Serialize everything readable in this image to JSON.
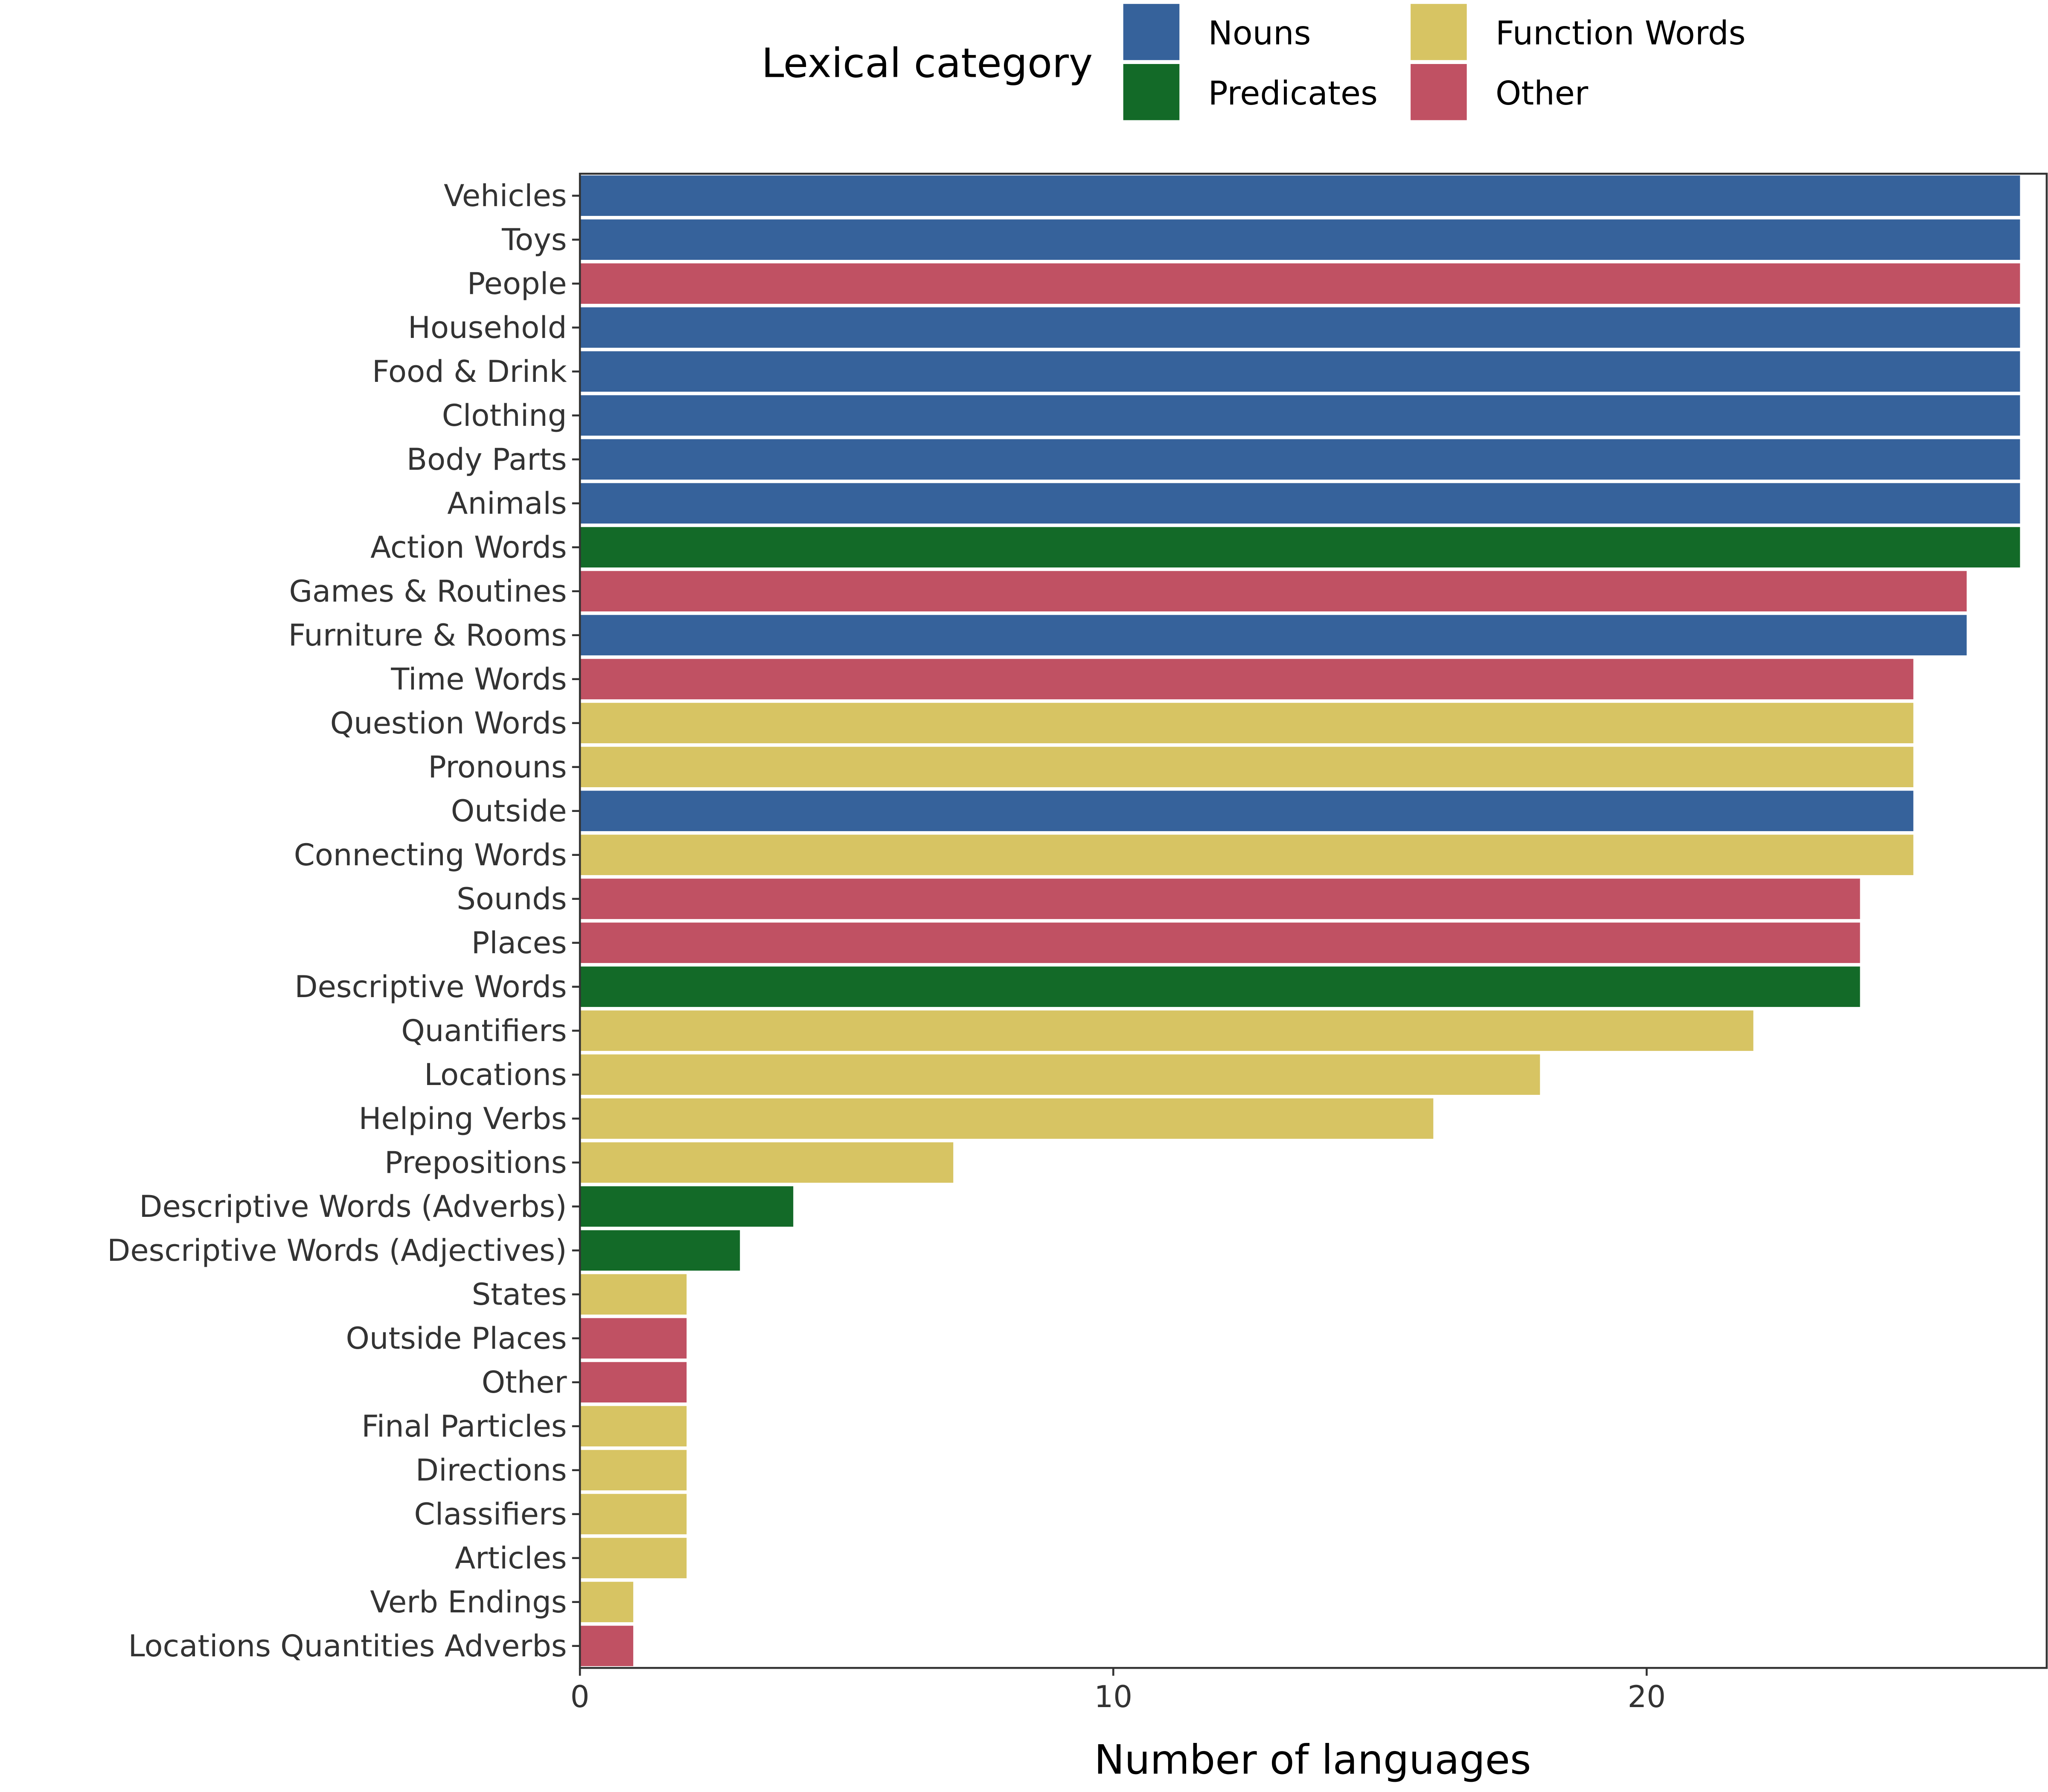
{
  "chart_data": {
    "type": "bar",
    "orientation": "horizontal",
    "title": "",
    "xlabel": "Number of languages",
    "ylabel": "",
    "xlim": [
      0,
      27.5
    ],
    "xticks": [
      0,
      10,
      20
    ],
    "grid": false,
    "legend": {
      "title": "Lexical category",
      "placement": "top",
      "entries": [
        {
          "name": "Nouns",
          "color": "#36629B"
        },
        {
          "name": "Predicates",
          "color": "#136A28"
        },
        {
          "name": "Function Words",
          "color": "#D7C463"
        },
        {
          "name": "Other",
          "color": "#C05163"
        }
      ]
    },
    "bars": [
      {
        "category": "Vehicles",
        "value": 27,
        "group": "Nouns"
      },
      {
        "category": "Toys",
        "value": 27,
        "group": "Nouns"
      },
      {
        "category": "People",
        "value": 27,
        "group": "Other"
      },
      {
        "category": "Household",
        "value": 27,
        "group": "Nouns"
      },
      {
        "category": "Food & Drink",
        "value": 27,
        "group": "Nouns"
      },
      {
        "category": "Clothing",
        "value": 27,
        "group": "Nouns"
      },
      {
        "category": "Body Parts",
        "value": 27,
        "group": "Nouns"
      },
      {
        "category": "Animals",
        "value": 27,
        "group": "Nouns"
      },
      {
        "category": "Action Words",
        "value": 27,
        "group": "Predicates"
      },
      {
        "category": "Games & Routines",
        "value": 26,
        "group": "Other"
      },
      {
        "category": "Furniture & Rooms",
        "value": 26,
        "group": "Nouns"
      },
      {
        "category": "Time Words",
        "value": 25,
        "group": "Other"
      },
      {
        "category": "Question Words",
        "value": 25,
        "group": "Function Words"
      },
      {
        "category": "Pronouns",
        "value": 25,
        "group": "Function Words"
      },
      {
        "category": "Outside",
        "value": 25,
        "group": "Nouns"
      },
      {
        "category": "Connecting Words",
        "value": 25,
        "group": "Function Words"
      },
      {
        "category": "Sounds",
        "value": 24,
        "group": "Other"
      },
      {
        "category": "Places",
        "value": 24,
        "group": "Other"
      },
      {
        "category": "Descriptive Words",
        "value": 24,
        "group": "Predicates"
      },
      {
        "category": "Quantifiers",
        "value": 22,
        "group": "Function Words"
      },
      {
        "category": "Locations",
        "value": 18,
        "group": "Function Words"
      },
      {
        "category": "Helping Verbs",
        "value": 16,
        "group": "Function Words"
      },
      {
        "category": "Prepositions",
        "value": 7,
        "group": "Function Words"
      },
      {
        "category": "Descriptive Words (Adverbs)",
        "value": 4,
        "group": "Predicates"
      },
      {
        "category": "Descriptive Words (Adjectives)",
        "value": 3,
        "group": "Predicates"
      },
      {
        "category": "States",
        "value": 2,
        "group": "Function Words"
      },
      {
        "category": "Outside Places",
        "value": 2,
        "group": "Other"
      },
      {
        "category": "Other",
        "value": 2,
        "group": "Other"
      },
      {
        "category": "Final Particles",
        "value": 2,
        "group": "Function Words"
      },
      {
        "category": "Directions",
        "value": 2,
        "group": "Function Words"
      },
      {
        "category": "Classifiers",
        "value": 2,
        "group": "Function Words"
      },
      {
        "category": "Articles",
        "value": 2,
        "group": "Function Words"
      },
      {
        "category": "Verb Endings",
        "value": 1,
        "group": "Function Words"
      },
      {
        "category": "Locations Quantities Adverbs",
        "value": 1,
        "group": "Other"
      }
    ]
  }
}
